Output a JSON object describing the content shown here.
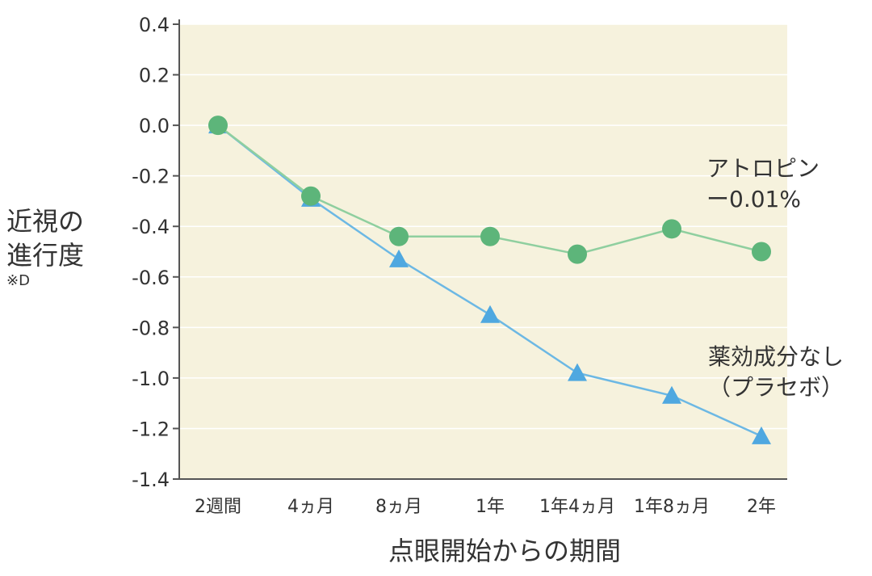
{
  "chart_data": {
    "type": "line",
    "title": "",
    "xlabel": "点眼開始からの期間",
    "ylabel": [
      "近視の",
      "進行度"
    ],
    "ylabel_unit": "※D",
    "categories": [
      "2週間",
      "4ヵ月",
      "8ヵ月",
      "1年",
      "1年4ヵ月",
      "1年8ヵ月",
      "2年"
    ],
    "ylim": [
      -1.4,
      0.4
    ],
    "yticks": [
      "0.4",
      "0.2",
      "0.0",
      "-0.2",
      "-0.4",
      "-0.6",
      "-0.8",
      "-1.0",
      "-1.2",
      "-1.4"
    ],
    "ytick_values": [
      0.4,
      0.2,
      0.0,
      -0.2,
      -0.4,
      -0.6,
      -0.8,
      -1.0,
      -1.2,
      -1.4
    ],
    "grid": true,
    "background": "#f6f2dd",
    "series": [
      {
        "name_lines": [
          "アトロピン",
          "ー0.01%"
        ],
        "marker": "circle",
        "color": "#5db57a",
        "line_color": "#8fcf9f",
        "values": [
          0.0,
          -0.28,
          -0.44,
          -0.44,
          -0.51,
          -0.41,
          -0.5
        ]
      },
      {
        "name_lines": [
          "薬効成分なし",
          "（プラセボ）"
        ],
        "marker": "triangle",
        "color": "#4fa8e0",
        "line_color": "#6cb8e4",
        "values": [
          0.0,
          -0.29,
          -0.53,
          -0.75,
          -0.98,
          -1.07,
          -1.23
        ]
      }
    ]
  }
}
